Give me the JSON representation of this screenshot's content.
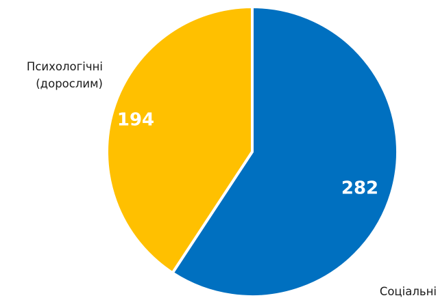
{
  "chart_data": {
    "type": "pie",
    "title": "",
    "start_angle_deg": 0,
    "direction": "clockwise",
    "slices": [
      {
        "label": "Соціальні",
        "value": 282,
        "color": "#0070C0"
      },
      {
        "label": "Психологічні\n(дорослим)",
        "value": 194,
        "color": "#FFC000"
      }
    ],
    "data_labels": [
      "282",
      "194"
    ],
    "legend": "none"
  }
}
